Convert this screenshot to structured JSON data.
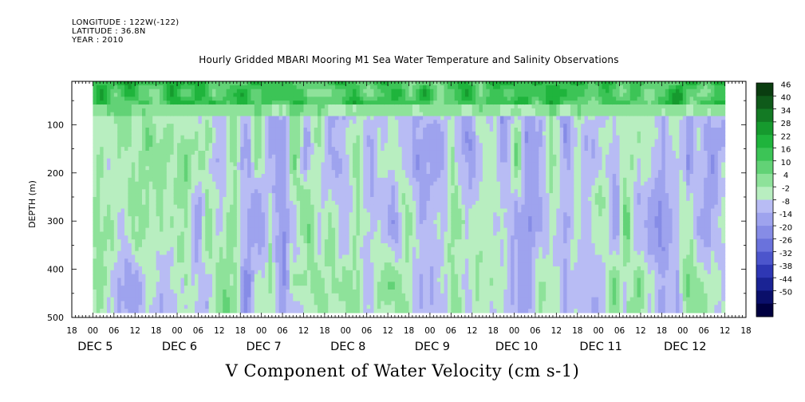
{
  "header": {
    "longitude": "LONGITUDE : 122W(-122)",
    "latitude": "LATITUDE : 36.8N",
    "year": "YEAR : 2010"
  },
  "chart_data": {
    "type": "heatmap",
    "title": "Hourly Gridded MBARI Mooring M1 Sea Water Temperature and Salinity Observations",
    "variable_label": "V Component of Water Velocity (cm s-1)",
    "ylabel": "DEPTH (m)",
    "xlabel": "",
    "y_axis": {
      "range": [
        500,
        10
      ],
      "inverted": true,
      "ticks": [
        100,
        200,
        300,
        400,
        500
      ],
      "tick_labels": [
        "100",
        "200",
        "300",
        "400",
        "500"
      ]
    },
    "x_axis": {
      "start": "2010-12-04 18:00",
      "end": "2010-12-12 18:00",
      "hour_tick_labels": [
        "18",
        "00",
        "06",
        "12",
        "18",
        "00",
        "06",
        "12",
        "18",
        "00",
        "06",
        "12",
        "18",
        "00",
        "06",
        "12",
        "18",
        "00",
        "06",
        "12",
        "18",
        "00",
        "06",
        "12",
        "18",
        "00",
        "06",
        "12",
        "18",
        "00",
        "06",
        "12",
        "18"
      ],
      "day_labels": [
        "DEC 5",
        "DEC 6",
        "DEC 7",
        "DEC 8",
        "DEC 9",
        "DEC 10",
        "DEC 11",
        "DEC 12"
      ],
      "data_start_hours": 6,
      "data_end_hours": 186
    },
    "depth_range": [
      10,
      490
    ],
    "colorbar": {
      "levels": [
        "46",
        "40",
        "34",
        "28",
        "22",
        "16",
        "10",
        "4",
        "-2",
        "-8",
        "-14",
        "-20",
        "-26",
        "-32",
        "-38",
        "-44",
        "-50"
      ],
      "colors": [
        "#0a3d10",
        "#0f5a1a",
        "#137a24",
        "#169a2e",
        "#1fb43c",
        "#3cc456",
        "#62d276",
        "#8ee29a",
        "#b8eec0",
        "#b8bcf4",
        "#9ea3ee",
        "#868ce6",
        "#6a72dc",
        "#4c55cc",
        "#2e37b4",
        "#1a2394",
        "#0a0f6a",
        "#000040"
      ]
    },
    "field_summary": "Near-surface (10-50 m) strongly positive, mid/deep column alternating positive/negative bands"
  }
}
